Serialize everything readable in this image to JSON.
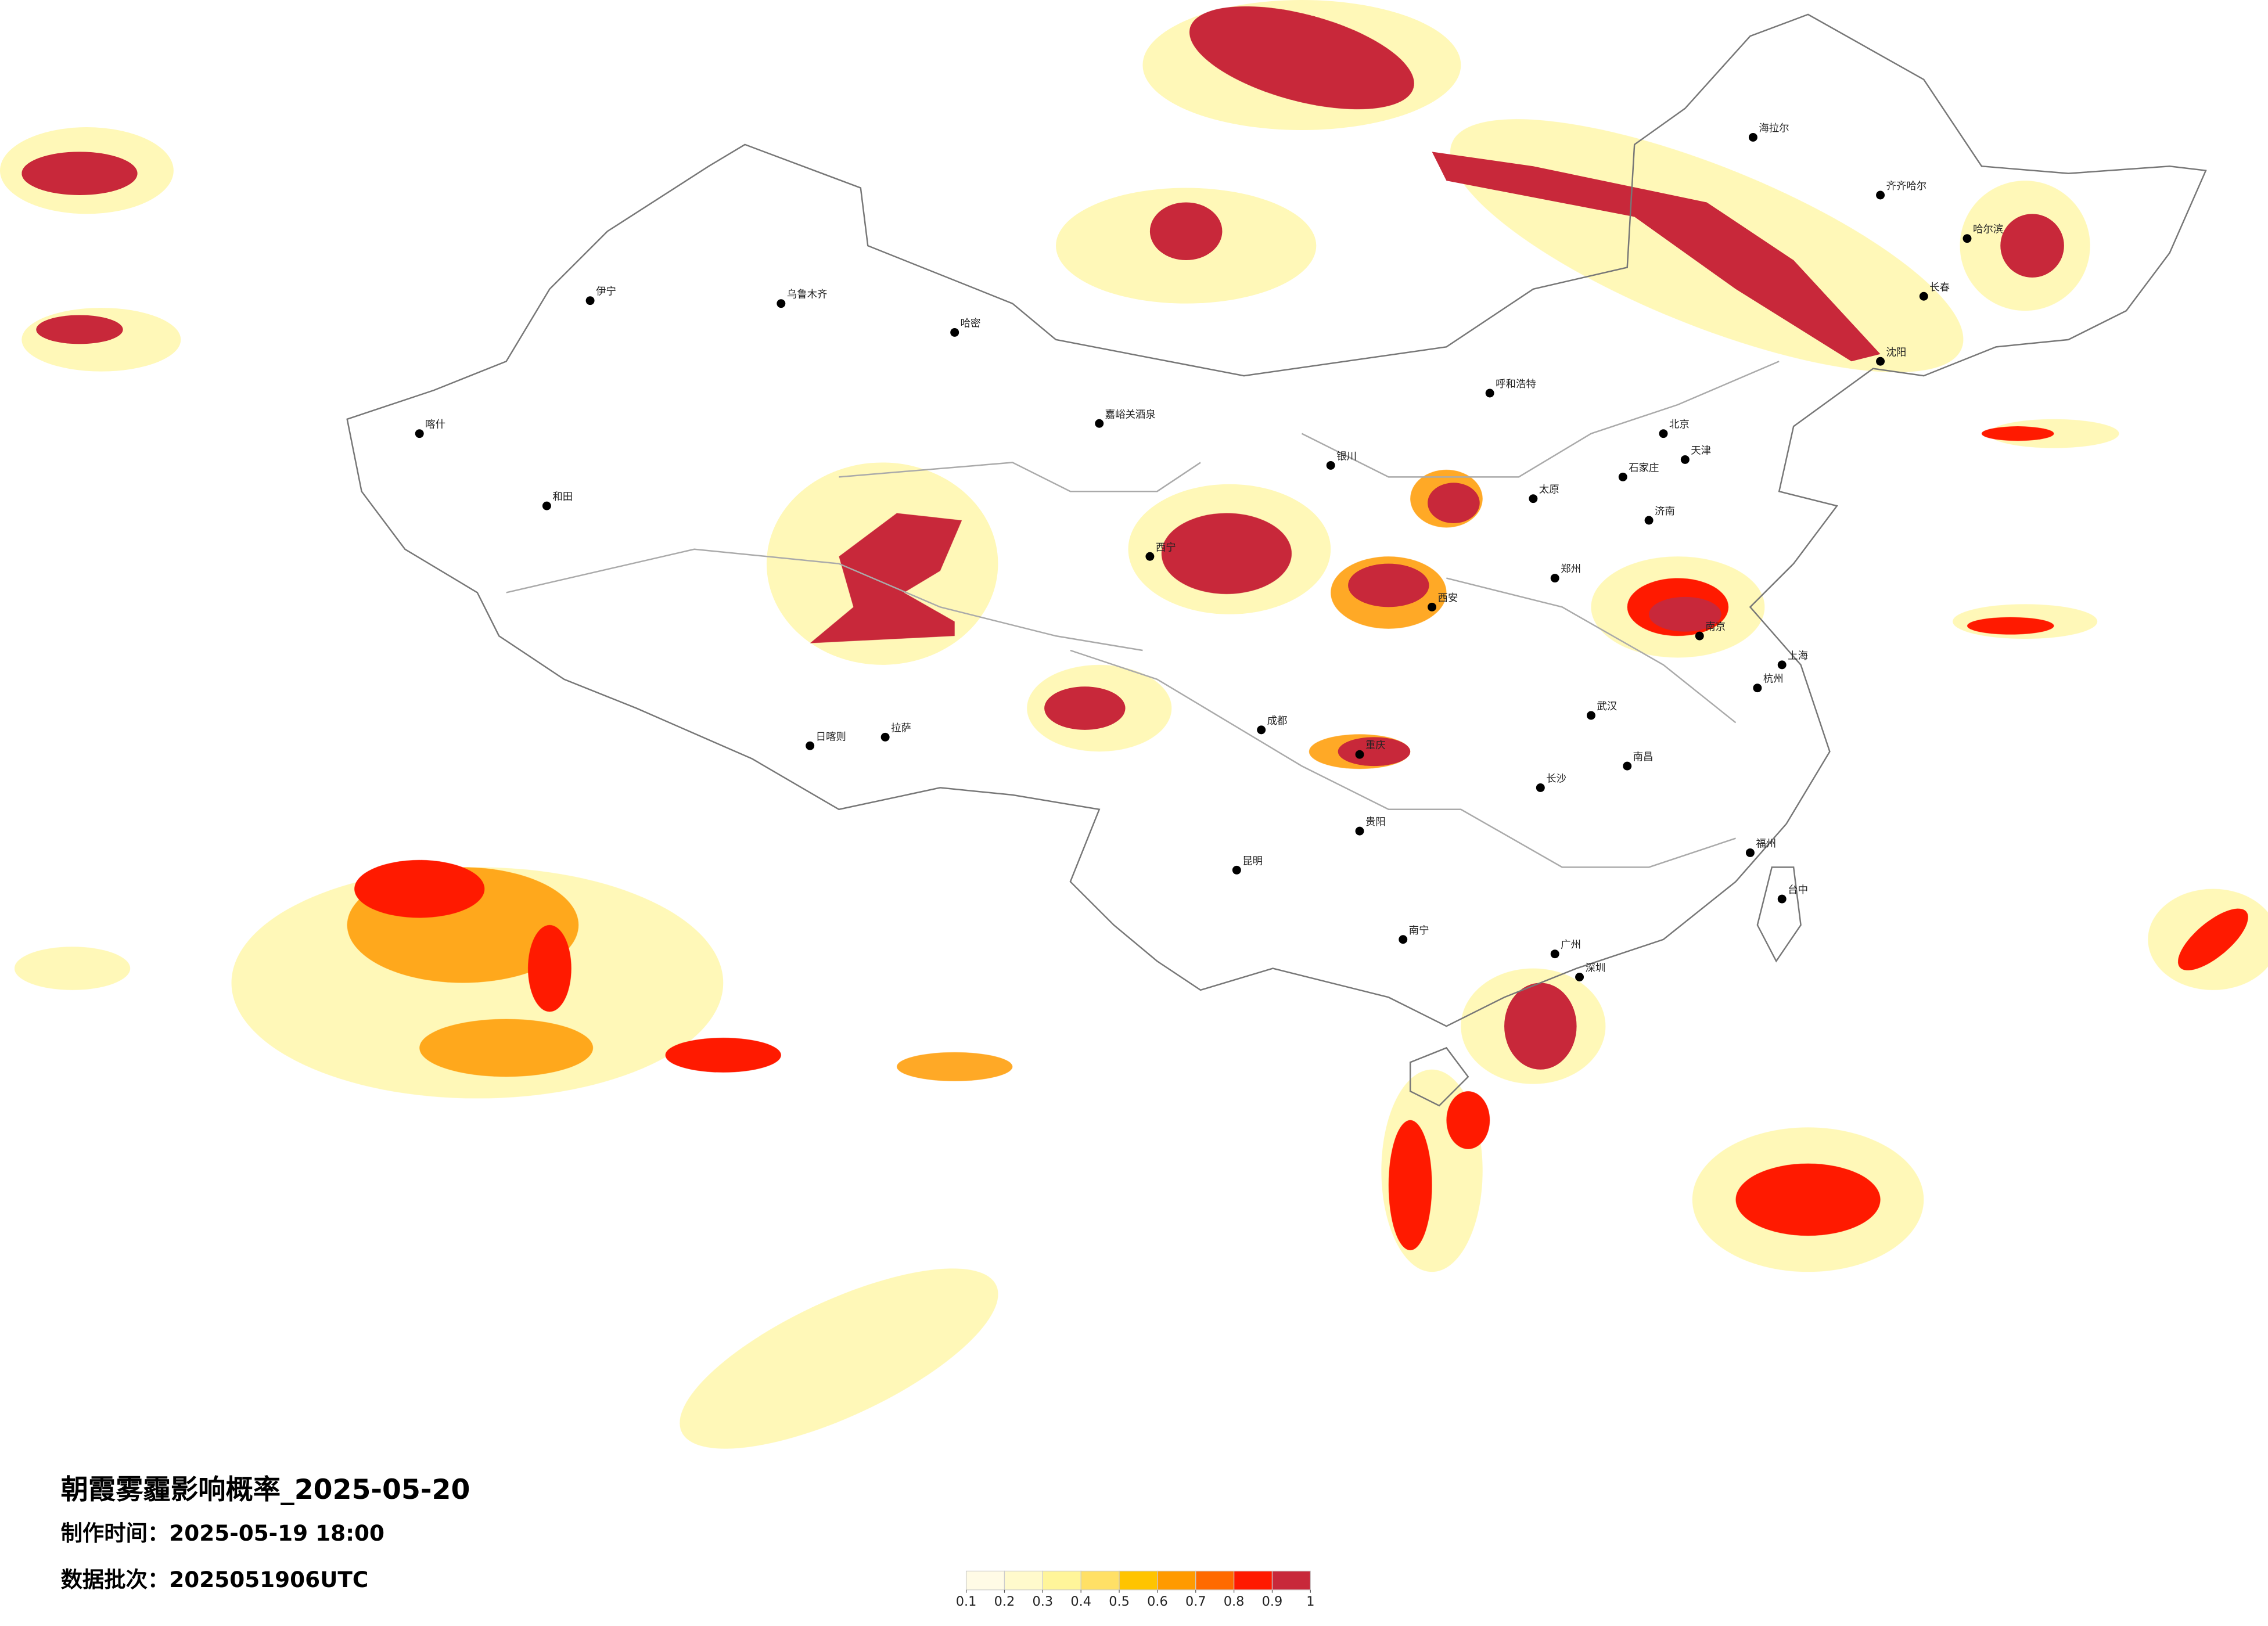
{
  "header": {
    "title": "朝霞雾霾影响概率_2025-05-20",
    "made_time": "制作时间：2025-05-19 18:00",
    "batch": "数据批次：2025051906UTC"
  },
  "legend": {
    "ticks": [
      0.1,
      0.2,
      0.3,
      0.4,
      0.5,
      0.6,
      0.7,
      0.8,
      0.9,
      1
    ],
    "colors": [
      "#fffbe6",
      "#fffacc",
      "#fff59a",
      "#ffe066",
      "#ffc400",
      "#ff9a00",
      "#ff6a00",
      "#ff1a00",
      "#c8283a"
    ]
  },
  "cities": [
    "北京",
    "天津",
    "上海",
    "广州",
    "深圳",
    "武汉",
    "成都",
    "重庆",
    "西安",
    "郑州",
    "济南",
    "南京",
    "杭州",
    "长沙",
    "南昌",
    "福州",
    "昆明",
    "贵阳",
    "南宁",
    "哈尔滨",
    "长春",
    "沈阳",
    "呼和浩特",
    "乌鲁木齐",
    "拉萨",
    "西宁",
    "银川",
    "太原",
    "石家庄",
    "哈密",
    "喀什",
    "和田",
    "伊宁",
    "齐齐哈尔",
    "海拉尔",
    "台中",
    "日喀则",
    "嘉峪关酒泉"
  ]
}
